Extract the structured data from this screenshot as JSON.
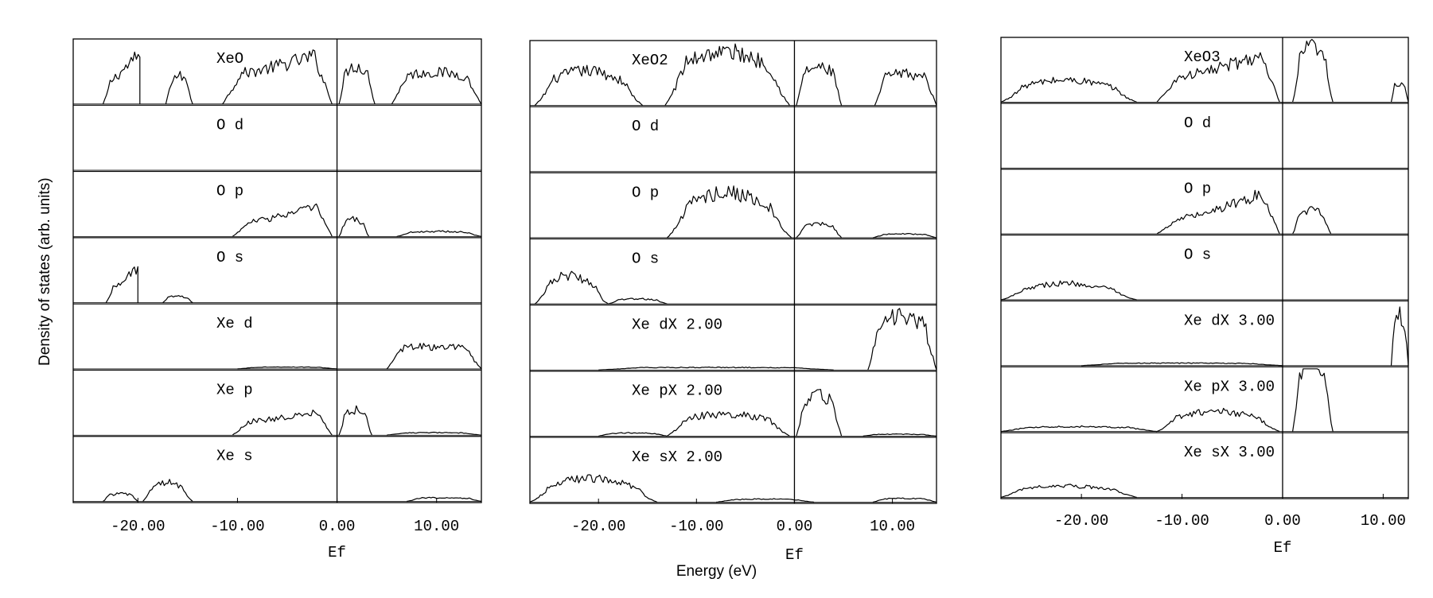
{
  "figure": {
    "ylabel": "Density of states (arb. units)",
    "xlabel": "Energy (eV)"
  },
  "chart_data": [
    {
      "type": "line",
      "title": "XeO",
      "xlabel": "Ef",
      "xlim": [
        -26.5,
        14.5
      ],
      "xticks": [
        -20,
        -10,
        0,
        10
      ],
      "xtick_labels": [
        "-20.00",
        "-10.00",
        "0.00",
        "10.00"
      ],
      "fermi_level": 0,
      "grid": false,
      "panels": [
        {
          "label": "XeO",
          "segments": [
            {
              "x0": -23.5,
              "x1": -19.8,
              "peak": 0.78,
              "base": 0.25,
              "sharp_edge": "right"
            },
            {
              "x0": -17.2,
              "x1": -14.5,
              "peak": 0.45,
              "base": 0.2
            },
            {
              "x0": -11.5,
              "x1": -0.5,
              "peak": 0.85,
              "base": 0.45,
              "rise": true
            },
            {
              "x0": 0.2,
              "x1": 3.8,
              "peak": 0.6,
              "base": 0.35
            },
            {
              "x0": 5.5,
              "x1": 14.5,
              "peak": 0.5,
              "base": 0.4
            }
          ]
        },
        {
          "label": "O d",
          "segments": []
        },
        {
          "label": "O p",
          "segments": [
            {
              "x0": -10.5,
              "x1": -0.5,
              "peak": 0.55,
              "base": 0.2,
              "rise": true
            },
            {
              "x0": 0.2,
              "x1": 3.2,
              "peak": 0.28,
              "base": 0.12
            },
            {
              "x0": 6,
              "x1": 14.5,
              "peak": 0.08,
              "base": 0.05
            }
          ]
        },
        {
          "label": "O s",
          "segments": [
            {
              "x0": -23.2,
              "x1": -20.0,
              "peak": 0.55,
              "base": 0.15,
              "sharp_edge": "right"
            },
            {
              "x0": -17.5,
              "x1": -14.5,
              "peak": 0.1,
              "base": 0.06
            }
          ]
        },
        {
          "label": "Xe d",
          "segments": [
            {
              "x0": -10,
              "x1": 0,
              "peak": 0.03,
              "base": 0.02
            },
            {
              "x0": 5,
              "x1": 14.5,
              "peak": 0.35,
              "base": 0.3
            }
          ]
        },
        {
          "label": "Xe p",
          "segments": [
            {
              "x0": -10.5,
              "x1": -0.5,
              "peak": 0.4,
              "base": 0.2,
              "rise": true
            },
            {
              "x0": 0.2,
              "x1": 3.5,
              "peak": 0.4,
              "base": 0.2
            },
            {
              "x0": 5,
              "x1": 14.5,
              "peak": 0.04,
              "base": 0.03
            }
          ]
        },
        {
          "label": "Xe s",
          "segments": [
            {
              "x0": -23.5,
              "x1": -20.0,
              "peak": 0.12,
              "base": 0.08
            },
            {
              "x0": -19.5,
              "x1": -14.5,
              "peak": 0.3,
              "base": 0.12
            },
            {
              "x0": 7,
              "x1": 14.5,
              "peak": 0.06,
              "base": 0.04
            }
          ]
        }
      ]
    },
    {
      "type": "line",
      "title": "XeO2",
      "xlabel": "Ef",
      "xlim": [
        -27,
        14.5
      ],
      "xticks": [
        -20,
        -10,
        0,
        10
      ],
      "xtick_labels": [
        "-20.00",
        "-10.00",
        "0.00",
        "10.00"
      ],
      "fermi_level": 0,
      "grid": false,
      "panels": [
        {
          "label": "XeO2",
          "segments": [
            {
              "x0": -26.5,
              "x1": -15.5,
              "peak": 0.55,
              "base": 0.25
            },
            {
              "x0": -13.2,
              "x1": -0.5,
              "peak": 0.85,
              "base": 0.5
            },
            {
              "x0": 0.2,
              "x1": 4.8,
              "peak": 0.6,
              "base": 0.45
            },
            {
              "x0": 8.2,
              "x1": 14.5,
              "peak": 0.5,
              "base": 0.4
            }
          ]
        },
        {
          "label": "O d",
          "segments": []
        },
        {
          "label": "O p",
          "segments": [
            {
              "x0": -13.0,
              "x1": -0.3,
              "peak": 0.72,
              "base": 0.3
            },
            {
              "x0": 0.2,
              "x1": 4.8,
              "peak": 0.22,
              "base": 0.12
            },
            {
              "x0": 8,
              "x1": 14.5,
              "peak": 0.06,
              "base": 0.04
            }
          ]
        },
        {
          "label": "O s",
          "segments": [
            {
              "x0": -26.5,
              "x1": -19.0,
              "peak": 0.45,
              "base": 0.12
            },
            {
              "x0": -19.0,
              "x1": -13.0,
              "peak": 0.08,
              "base": 0.04
            }
          ]
        },
        {
          "label": "Xe dX 2.00",
          "segments": [
            {
              "x0": -20,
              "x1": 4,
              "peak": 0.04,
              "base": 0.03
            },
            {
              "x0": 7.5,
              "x1": 14.5,
              "peak": 0.85,
              "base": 0.6
            }
          ]
        },
        {
          "label": "Xe pX 2.00",
          "segments": [
            {
              "x0": -20,
              "x1": -13,
              "peak": 0.05,
              "base": 0.03
            },
            {
              "x0": -13.0,
              "x1": -0.5,
              "peak": 0.35,
              "base": 0.2
            },
            {
              "x0": 0.2,
              "x1": 4.8,
              "peak": 0.65,
              "base": 0.4
            },
            {
              "x0": 7,
              "x1": 14.5,
              "peak": 0.03,
              "base": 0.02
            }
          ]
        },
        {
          "label": "Xe sX 2.00",
          "segments": [
            {
              "x0": -27,
              "x1": -14,
              "peak": 0.38,
              "base": 0.15
            },
            {
              "x0": -8,
              "x1": 2,
              "peak": 0.05,
              "base": 0.03
            },
            {
              "x0": 8,
              "x1": 14.5,
              "peak": 0.06,
              "base": 0.04
            }
          ]
        }
      ]
    },
    {
      "type": "line",
      "title": "XeO3",
      "xlabel": "Ef",
      "xlim": [
        -28,
        12.5
      ],
      "xticks": [
        -20,
        -10,
        0,
        10
      ],
      "xtick_labels": [
        "-20.00",
        "-10.00",
        "0.00",
        "10.00"
      ],
      "fermi_level": 0,
      "grid": false,
      "panels": [
        {
          "label": "XeO3",
          "segments": [
            {
              "x0": -28,
              "x1": -14.5,
              "peak": 0.35,
              "base": 0.15
            },
            {
              "x0": -12.5,
              "x1": -0.3,
              "peak": 0.85,
              "base": 0.35,
              "rise": true
            },
            {
              "x0": 1.0,
              "x1": 5.0,
              "peak": 0.88,
              "base": 0.4
            },
            {
              "x0": 10.8,
              "x1": 12.5,
              "peak": 0.3,
              "base": 0.2
            }
          ]
        },
        {
          "label": "O d",
          "segments": []
        },
        {
          "label": "O p",
          "segments": [
            {
              "x0": -12.5,
              "x1": -0.3,
              "peak": 0.75,
              "base": 0.2,
              "rise": true
            },
            {
              "x0": 1.0,
              "x1": 4.8,
              "peak": 0.38,
              "base": 0.2
            }
          ]
        },
        {
          "label": "O s",
          "segments": [
            {
              "x0": -28,
              "x1": -14.5,
              "peak": 0.26,
              "base": 0.08
            }
          ]
        },
        {
          "label": "Xe dX 3.00",
          "segments": [
            {
              "x0": -20,
              "x1": 0,
              "peak": 0.04,
              "base": 0.03
            },
            {
              "x0": 10.8,
              "x1": 12.5,
              "peak": 0.8,
              "base": 0.5
            }
          ]
        },
        {
          "label": "Xe pX 3.00",
          "segments": [
            {
              "x0": -28,
              "x1": -12.5,
              "peak": 0.08,
              "base": 0.05
            },
            {
              "x0": -12.5,
              "x1": -0.3,
              "peak": 0.32,
              "base": 0.14
            },
            {
              "x0": 1.0,
              "x1": 5.0,
              "peak": 1.2,
              "base": 0.6
            }
          ]
        },
        {
          "label": "Xe sX 3.00",
          "segments": [
            {
              "x0": -28,
              "x1": -14.5,
              "peak": 0.18,
              "base": 0.1
            }
          ]
        }
      ]
    }
  ]
}
